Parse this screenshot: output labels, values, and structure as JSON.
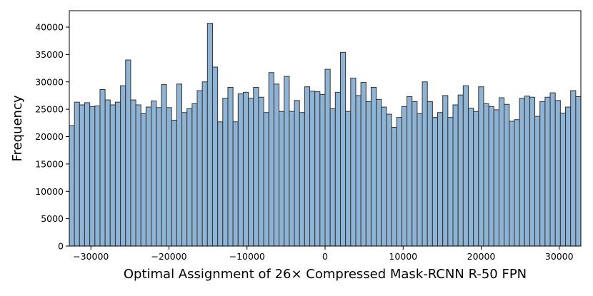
{
  "chart_data": {
    "type": "bar",
    "title": "",
    "xlabel": "Optimal Assignment of 26× Compressed Mask-RCNN R-50 FPN",
    "ylabel": "Frequency",
    "xlim": [
      -32768,
      32767
    ],
    "ylim": [
      0,
      43000
    ],
    "bin_start": -32768,
    "bin_width": 655.35,
    "x_ticks": [
      -30000,
      -20000,
      -10000,
      0,
      10000,
      20000,
      30000
    ],
    "x_tick_labels": [
      "−30000",
      "−20000",
      "−10000",
      "0",
      "10000",
      "20000",
      "30000"
    ],
    "y_ticks": [
      0,
      5000,
      10000,
      15000,
      20000,
      25000,
      30000,
      35000,
      40000
    ],
    "y_tick_labels": [
      "0",
      "5000",
      "10000",
      "15000",
      "20000",
      "25000",
      "30000",
      "35000",
      "40000"
    ],
    "colors": {
      "bar_fill": "#8db4d4",
      "bar_edge": "#333333"
    },
    "values": [
      22000,
      26300,
      25800,
      26200,
      25500,
      25600,
      28600,
      26700,
      25800,
      26300,
      29300,
      34000,
      26700,
      25800,
      24200,
      25400,
      26500,
      25300,
      29500,
      25300,
      23000,
      29600,
      24400,
      25100,
      26000,
      28400,
      30000,
      40700,
      32700,
      22700,
      27000,
      29000,
      22700,
      27800,
      28100,
      27000,
      29000,
      27200,
      24400,
      31700,
      29600,
      24600,
      31000,
      24600,
      26600,
      24400,
      29100,
      28300,
      28200,
      27700,
      32300,
      25100,
      28100,
      35400,
      24600,
      30700,
      27500,
      29900,
      26400,
      29000,
      26800,
      25400,
      24100,
      21700,
      23500,
      25500,
      27300,
      26400,
      24200,
      30000,
      26400,
      23500,
      24400,
      27500,
      23500,
      25800,
      27600,
      29300,
      25200,
      24600,
      29100,
      26000,
      25500,
      24900,
      27100,
      25900,
      22800,
      23100,
      27000,
      27400,
      27200,
      23700,
      26400,
      27200,
      28000,
      26600,
      24300,
      25400,
      28400,
      27300
    ]
  }
}
